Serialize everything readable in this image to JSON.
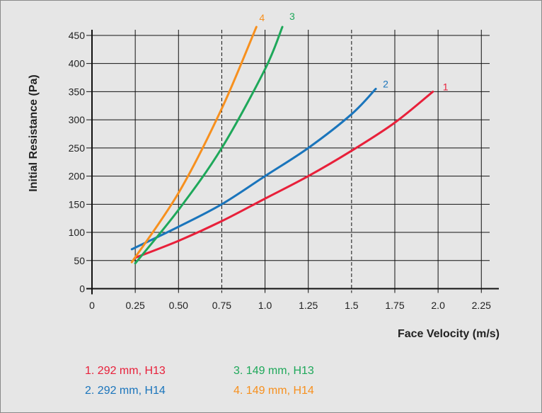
{
  "chart_data": {
    "type": "line",
    "xlabel": "Face Velocity (m/s)",
    "ylabel": "Initial Resistance (Pa)",
    "xlim": [
      0,
      2.3
    ],
    "ylim": [
      0,
      460
    ],
    "x_ticks": [
      "0",
      "0.25",
      "0.50",
      "0.75",
      "1.0",
      "1.25",
      "1.5",
      "1.75",
      "2.0",
      "2.25"
    ],
    "x_tick_values": [
      0,
      0.25,
      0.5,
      0.75,
      1.0,
      1.25,
      1.5,
      1.75,
      2.0,
      2.25
    ],
    "y_ticks": [
      "0",
      "50",
      "100",
      "150",
      "200",
      "250",
      "300",
      "350",
      "400",
      "450"
    ],
    "y_tick_values": [
      0,
      50,
      100,
      150,
      200,
      250,
      300,
      350,
      400,
      450
    ],
    "dashed_vertical_lines": [
      0.75,
      1.5
    ],
    "grid": true,
    "legend_position": "bottom",
    "series": [
      {
        "name": "1. 292 mm, H13",
        "tag": "1",
        "color": "#e8203a",
        "x": [
          0.25,
          0.5,
          0.75,
          1.0,
          1.25,
          1.5,
          1.75,
          1.97
        ],
        "y": [
          55,
          85,
          120,
          160,
          200,
          245,
          295,
          350
        ]
      },
      {
        "name": "2. 292 mm, H14",
        "tag": "2",
        "color": "#1a75bc",
        "x": [
          0.23,
          0.5,
          0.75,
          1.0,
          1.25,
          1.5,
          1.64
        ],
        "y": [
          70,
          110,
          150,
          200,
          250,
          310,
          355
        ]
      },
      {
        "name": "3. 149 mm, H13",
        "tag": "3",
        "color": "#1ea85a",
        "x": [
          0.25,
          0.5,
          0.75,
          1.0,
          1.1
        ],
        "y": [
          45,
          140,
          250,
          390,
          465
        ]
      },
      {
        "name": "4. 149 mm, H14",
        "tag": "4",
        "color": "#f7901e",
        "x": [
          0.23,
          0.5,
          0.75,
          0.95
        ],
        "y": [
          47,
          170,
          320,
          465
        ]
      }
    ]
  }
}
